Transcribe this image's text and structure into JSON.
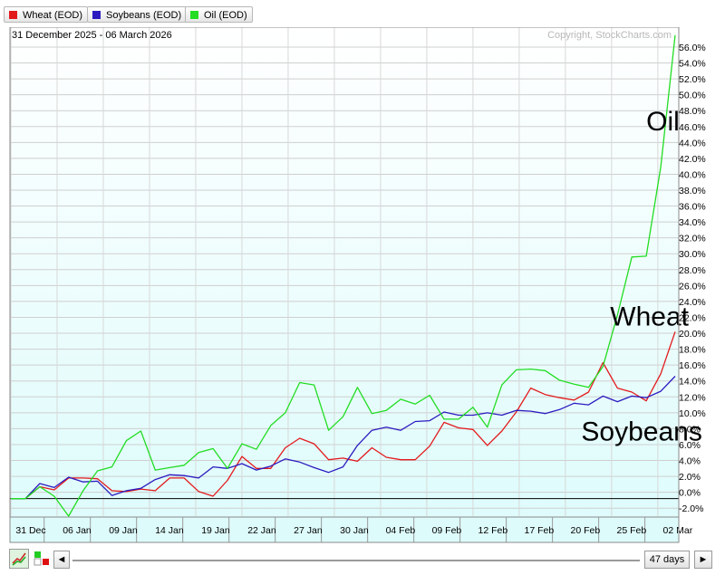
{
  "legend": [
    {
      "label": "Wheat (EOD)",
      "color": "#e31a1c"
    },
    {
      "label": "Soybeans (EOD)",
      "color": "#2b1bbf"
    },
    {
      "label": "Oil (EOD)",
      "color": "#22dd22"
    }
  ],
  "date_range": "31 December 2025 - 06 March 2026",
  "copyright": "Copyright, StockCharts.com",
  "toolbar": {
    "days_label": "47 days",
    "prev_glyph": "◄",
    "next_glyph": "►"
  },
  "chart_data": {
    "type": "line",
    "x_labels": [
      "31 Dec",
      "06 Jan",
      "09 Jan",
      "14 Jan",
      "19 Jan",
      "22 Jan",
      "27 Jan",
      "30 Jan",
      "04 Feb",
      "09 Feb",
      "12 Feb",
      "17 Feb",
      "20 Feb",
      "25 Feb",
      "02 Mar"
    ],
    "y_ticks": [
      "-2.0%",
      "0.0%",
      "2.0%",
      "4.0%",
      "6.0%",
      "8.0%",
      "10.0%",
      "12.0%",
      "14.0%",
      "16.0%",
      "18.0%",
      "20.0%",
      "22.0%",
      "24.0%",
      "26.0%",
      "28.0%",
      "30.0%",
      "32.0%",
      "34.0%",
      "36.0%",
      "38.0%",
      "40.0%",
      "42.0%",
      "44.0%",
      "46.0%",
      "48.0%",
      "50.0%",
      "52.0%",
      "54.0%",
      "56.0%"
    ],
    "ylim": [
      -3,
      58.5
    ],
    "baseline": -0.8,
    "grid": true,
    "annotations": [
      {
        "text": "Oil",
        "series": "Oil",
        "x": 44,
        "y": 45.5
      },
      {
        "text": "Wheat",
        "series": "Wheat",
        "x": 41.5,
        "y": 21
      },
      {
        "text": "Soybeans",
        "series": "Soybeans",
        "x": 39.5,
        "y": 6.5
      }
    ],
    "series": [
      {
        "name": "Wheat",
        "color": "#e31a1c",
        "values": [
          -0.8,
          -0.8,
          0.7,
          0.3,
          1.8,
          1.8,
          1.7,
          0.2,
          0.1,
          0.4,
          0.2,
          1.8,
          1.8,
          0.1,
          -0.5,
          1.5,
          4.5,
          3.0,
          3.0,
          5.6,
          6.8,
          6.1,
          4.1,
          4.3,
          3.9,
          5.6,
          4.4,
          4.1,
          4.1,
          5.8,
          8.8,
          8.1,
          7.9,
          5.9,
          7.7,
          10.1,
          13.1,
          12.3,
          11.9,
          11.6,
          12.6,
          16.3,
          13.1,
          12.6,
          11.5,
          14.9,
          20.2
        ]
      },
      {
        "name": "Soybeans",
        "color": "#2b1bbf",
        "values": [
          -0.8,
          -0.8,
          1.1,
          0.6,
          1.9,
          1.3,
          1.4,
          -0.4,
          0.2,
          0.5,
          1.6,
          2.2,
          2.1,
          1.8,
          3.2,
          3.0,
          3.6,
          2.8,
          3.3,
          4.2,
          3.8,
          3.1,
          2.5,
          3.2,
          5.9,
          7.8,
          8.2,
          7.8,
          8.9,
          9.0,
          10.1,
          9.7,
          9.7,
          10.0,
          9.7,
          10.3,
          10.2,
          9.9,
          10.4,
          11.2,
          11.0,
          12.1,
          11.4,
          12.1,
          11.9,
          12.7,
          14.6
        ]
      },
      {
        "name": "Oil",
        "color": "#22dd22",
        "values": [
          -0.8,
          -0.8,
          0.7,
          -0.5,
          -3.0,
          0.2,
          2.7,
          3.2,
          6.5,
          7.7,
          2.8,
          3.1,
          3.4,
          5.0,
          5.5,
          3.0,
          6.1,
          5.4,
          8.4,
          10.0,
          13.8,
          13.5,
          7.8,
          9.5,
          13.2,
          9.9,
          10.3,
          11.7,
          11.1,
          12.2,
          9.2,
          9.2,
          10.7,
          8.2,
          13.5,
          15.4,
          15.5,
          15.3,
          14.1,
          13.6,
          13.2,
          15.8,
          22.3,
          29.6,
          29.7,
          40.9,
          57.5
        ]
      }
    ]
  }
}
